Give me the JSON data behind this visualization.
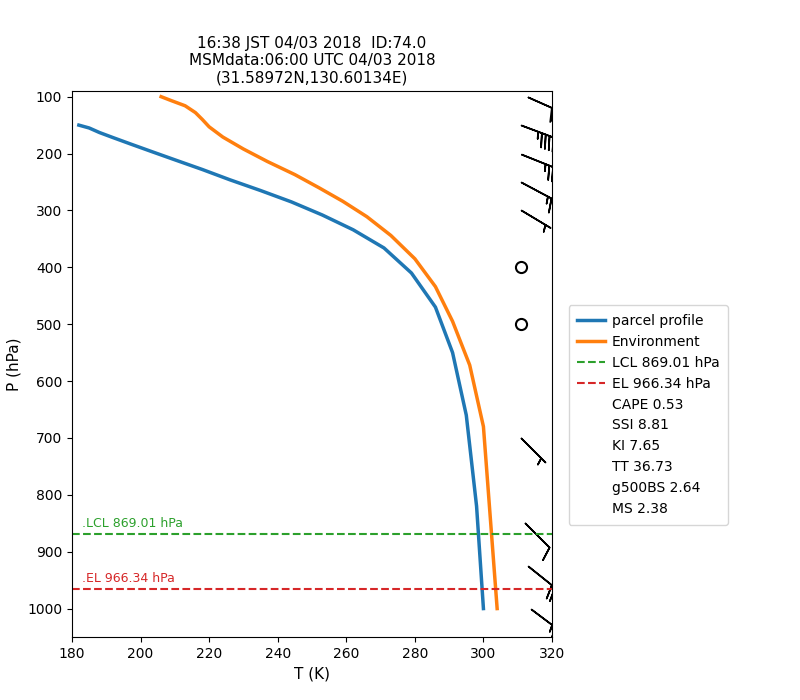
{
  "title_line1": "16:38 JST 04/03 2018  ID:74.0",
  "title_line2": "MSMdata:06:00 UTC 04/03 2018",
  "title_line3": "(31.58972N,130.60134E)",
  "xlabel": "T (K)",
  "ylabel": "P (hPa)",
  "xlim": [
    180,
    320
  ],
  "ylim": [
    1050,
    90
  ],
  "xticks": [
    180,
    200,
    220,
    240,
    260,
    280,
    300,
    320
  ],
  "yticks": [
    100,
    200,
    300,
    400,
    500,
    600,
    700,
    800,
    900,
    1000
  ],
  "parcel_T": [
    182,
    185,
    188,
    192,
    197,
    203,
    210,
    218,
    226,
    235,
    244,
    253,
    262,
    271,
    279,
    286,
    291,
    295,
    298,
    300
  ],
  "parcel_P": [
    150,
    155,
    163,
    172,
    183,
    196,
    211,
    228,
    246,
    265,
    285,
    308,
    334,
    366,
    410,
    470,
    550,
    660,
    820,
    1000
  ],
  "env_T": [
    206,
    209,
    213,
    216,
    218,
    220,
    224,
    230,
    237,
    245,
    252,
    259,
    266,
    273,
    280,
    286,
    291,
    296,
    300,
    304
  ],
  "env_P": [
    100,
    107,
    116,
    128,
    140,
    153,
    171,
    192,
    214,
    237,
    260,
    284,
    311,
    344,
    385,
    434,
    495,
    572,
    680,
    1000
  ],
  "parcel_color": "#1f77b4",
  "env_color": "#ff7f0e",
  "lcl_p": 869.01,
  "el_p": 966.34,
  "lcl_color": "#2ca02c",
  "el_color": "#d62728",
  "lcl_label": "LCL 869.01 hPa",
  "el_label": "EL 966.34 hPa",
  "cape": "CAPE 0.53",
  "ssi": "SSI 8.81",
  "ki": "KI 7.65",
  "tt": "TT 36.73",
  "g500bs": "g500BS 2.64",
  "ms": "MS 2.38",
  "wind_barbs": [
    {
      "p": 100,
      "x": 313,
      "u": -45,
      "v": 20
    },
    {
      "p": 150,
      "x": 311,
      "u": -40,
      "v": 15
    },
    {
      "p": 200,
      "x": 311,
      "u": -25,
      "v": 10
    },
    {
      "p": 250,
      "x": 311,
      "u": -15,
      "v": 8
    },
    {
      "p": 300,
      "x": 311,
      "u": -5,
      "v": 3
    },
    {
      "p": 400,
      "x": 311,
      "u": 0,
      "v": 0
    },
    {
      "p": 500,
      "x": 311,
      "u": 0,
      "v": 0
    },
    {
      "p": 700,
      "x": 311,
      "u": -3,
      "v": 3
    },
    {
      "p": 850,
      "x": 312,
      "u": -8,
      "v": 8
    },
    {
      "p": 925,
      "x": 313,
      "u": -15,
      "v": 12
    },
    {
      "p": 1000,
      "x": 314,
      "u": -20,
      "v": 15
    }
  ],
  "background_color": "#ffffff",
  "title_fontsize": 11,
  "label_fontsize": 11
}
